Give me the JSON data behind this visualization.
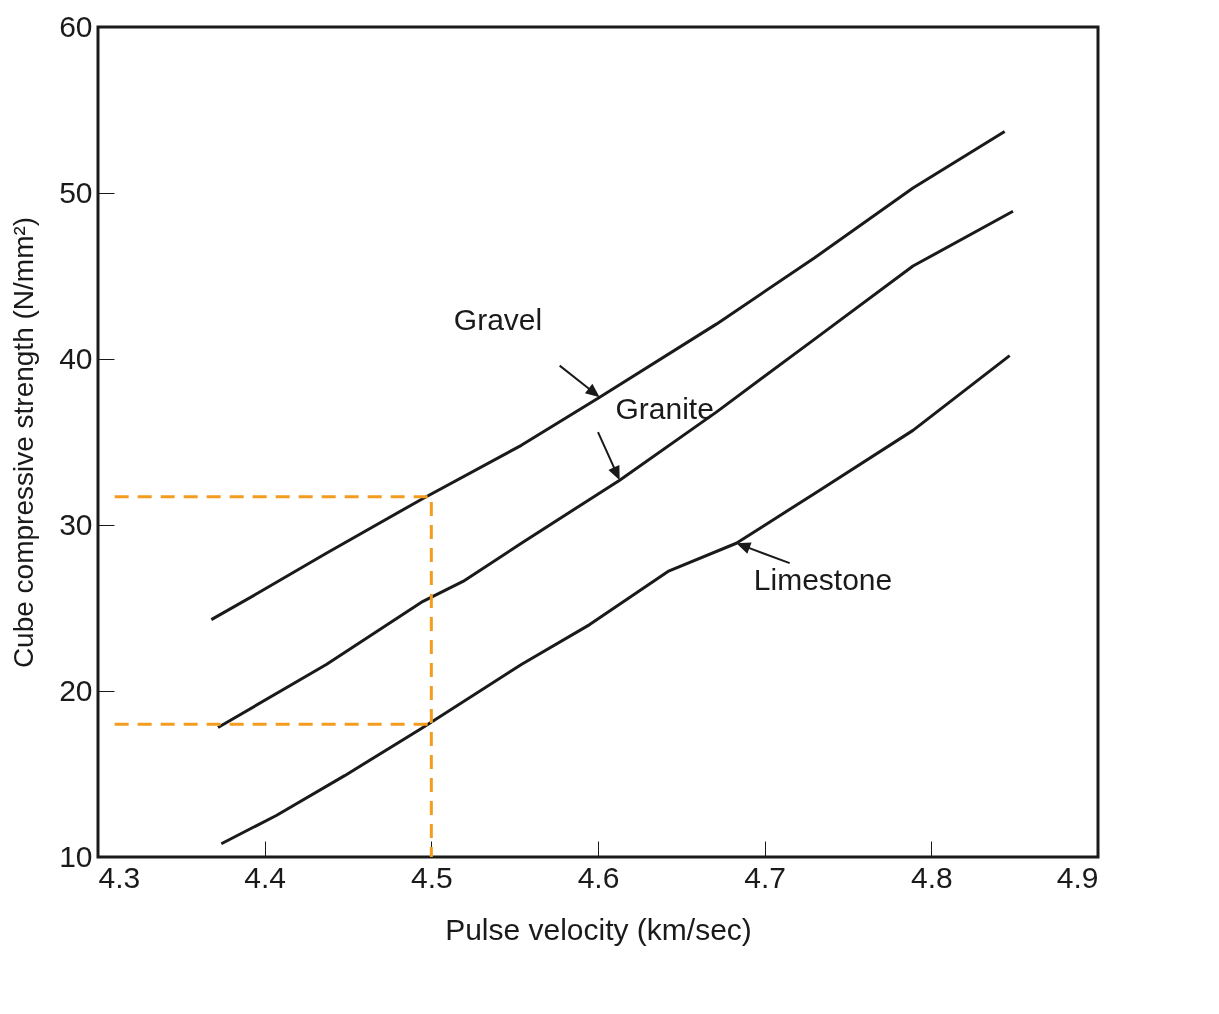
{
  "chart_data": {
    "type": "line",
    "xlabel": "Pulse velocity (km/sec)",
    "ylabel": "Cube compressive strength (N/mm²)",
    "xlim": [
      4.3,
      4.9
    ],
    "ylim": [
      10,
      60
    ],
    "xticks": [
      4.3,
      4.4,
      4.5,
      4.6,
      4.7,
      4.8,
      4.9
    ],
    "yticks": [
      10,
      20,
      30,
      40,
      50,
      60
    ],
    "grid": false,
    "marker": "none",
    "line_style": "solid",
    "series": [
      {
        "name": "Gravel",
        "color": "#1a1a1a",
        "x": [
          4.368,
          4.396,
          4.437,
          4.495,
          4.554,
          4.601,
          4.671,
          4.73,
          4.789,
          4.844
        ],
        "values": [
          24.3,
          25.9,
          28.3,
          31.6,
          34.8,
          37.7,
          42.1,
          46.1,
          50.3,
          53.7
        ]
      },
      {
        "name": "Granite",
        "color": "#1a1a1a",
        "x": [
          4.372,
          4.437,
          4.495,
          4.519,
          4.554,
          4.613,
          4.671,
          4.73,
          4.789,
          4.849
        ],
        "values": [
          17.8,
          21.6,
          25.4,
          26.6,
          28.9,
          32.7,
          36.8,
          41.2,
          45.6,
          48.9
        ]
      },
      {
        "name": "Limestone",
        "color": "#1a1a1a",
        "x": [
          4.374,
          4.407,
          4.448,
          4.495,
          4.554,
          4.595,
          4.642,
          4.683,
          4.73,
          4.789,
          4.847
        ],
        "values": [
          10.8,
          12.5,
          14.9,
          17.8,
          21.6,
          24.0,
          27.2,
          28.9,
          31.9,
          35.7,
          40.2
        ]
      },
      {
        "color": "#f39c1f",
        "line_style": "dashed",
        "x": [
          4.31,
          4.5,
          4.5
        ],
        "values": [
          31.7,
          31.7,
          10
        ]
      },
      {
        "color": "#f39c1f",
        "line_style": "dashed",
        "x": [
          4.31,
          4.5
        ],
        "values": [
          18,
          18
        ]
      }
    ]
  }
}
